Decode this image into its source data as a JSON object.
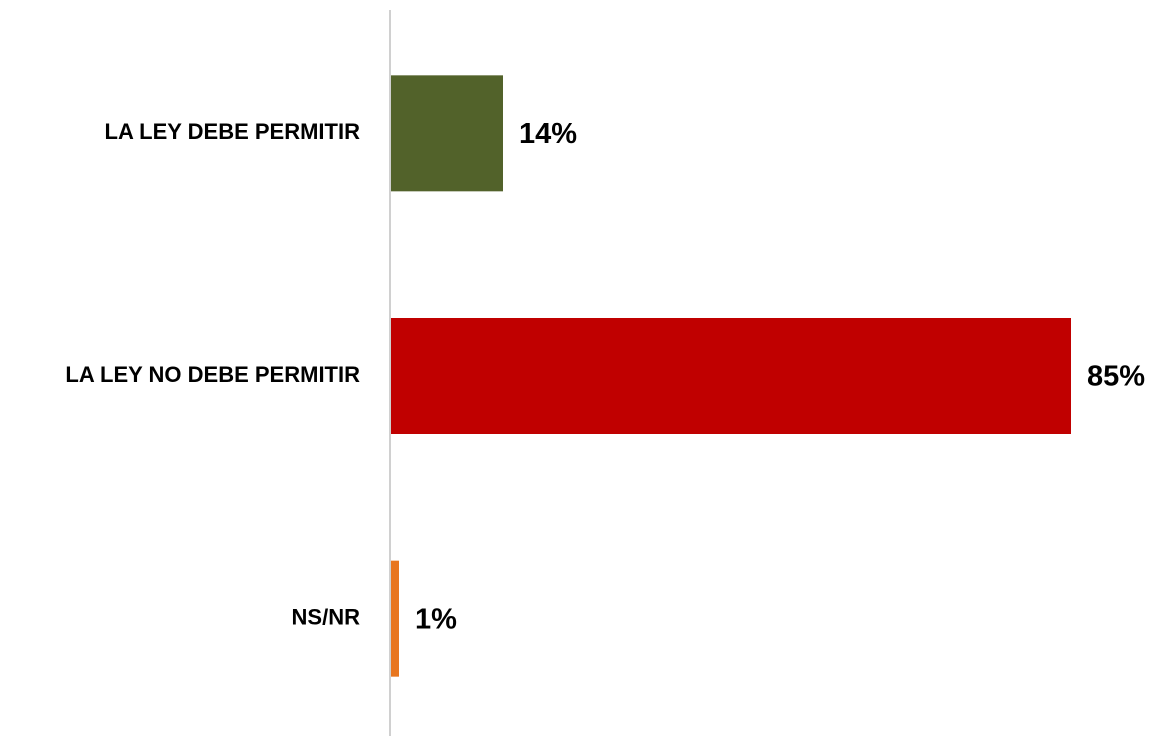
{
  "chart_data": {
    "type": "barh",
    "categories": [
      "LA LEY DEBE PERMITIR",
      "LA LEY NO DEBE PERMITIR",
      "NS/NR"
    ],
    "values": [
      14,
      85,
      1
    ],
    "value_labels": [
      "14%",
      "85%",
      "1%"
    ],
    "colors": [
      "#52622a",
      "#c00000",
      "#e8761f"
    ],
    "xlim": [
      0,
      95
    ]
  }
}
